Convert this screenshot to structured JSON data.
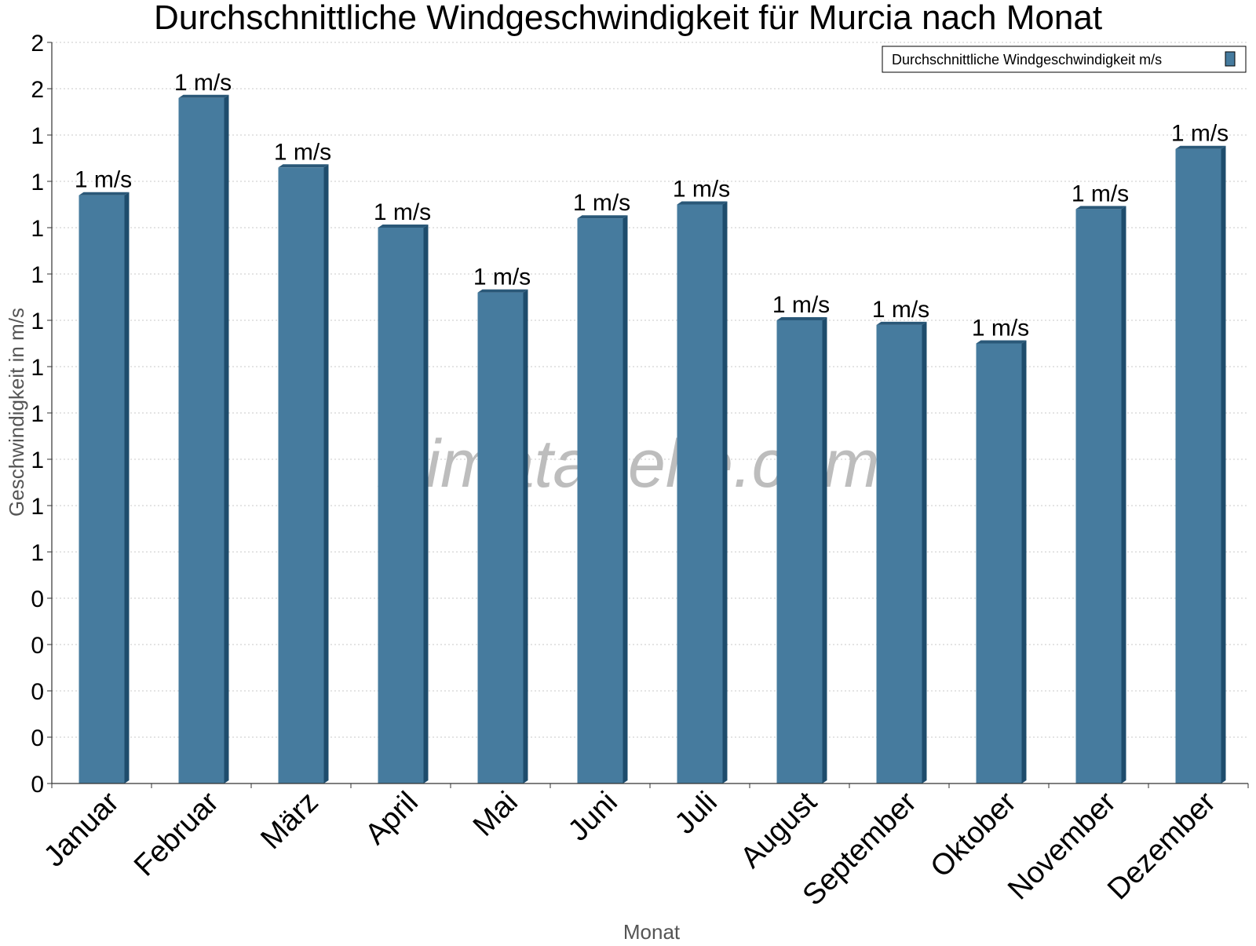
{
  "chart_data": {
    "type": "bar",
    "title": "Durchschnittliche Windgeschwindigkeit für Murcia nach Monat",
    "xlabel": "Monat",
    "ylabel": "Geschwindigkeit in m/s",
    "categories": [
      "Januar",
      "Februar",
      "März",
      "April",
      "Mai",
      "Juni",
      "Juli",
      "August",
      "September",
      "Oktober",
      "November",
      "Dezember"
    ],
    "series": [
      {
        "name": "Durchschnittliche Windgeschwindigkeit m/s",
        "values": [
          1.27,
          1.48,
          1.33,
          1.2,
          1.06,
          1.22,
          1.25,
          1.0,
          0.99,
          0.95,
          1.24,
          1.37
        ],
        "data_labels": [
          "1 m/s",
          "1 m/s",
          "1 m/s",
          "1 m/s",
          "1 m/s",
          "1 m/s",
          "1 m/s",
          "1 m/s",
          "1 m/s",
          "1 m/s",
          "1 m/s",
          "1 m/s"
        ]
      }
    ],
    "ylim": [
      0,
      1.6
    ],
    "yticks": [
      0,
      0.1,
      0.2,
      0.3,
      0.4,
      0.5,
      0.6,
      0.7,
      0.8,
      0.9,
      1.0,
      1.1,
      1.2,
      1.3,
      1.4,
      1.5,
      1.6
    ],
    "ytick_labels": [
      "0",
      "0",
      "0",
      "0",
      "0",
      "1",
      "1",
      "1",
      "1",
      "1",
      "1",
      "1",
      "1",
      "1",
      "1",
      "2",
      "2"
    ],
    "grid": true,
    "legend_position": "top-right",
    "colors": {
      "bar": "#467b9e",
      "bar_side": "#1e4c6c",
      "bar_top": "#2a5878",
      "grid": "#c8c8c8",
      "axis": "#333333"
    },
    "watermark": "klimatabelle.com"
  }
}
